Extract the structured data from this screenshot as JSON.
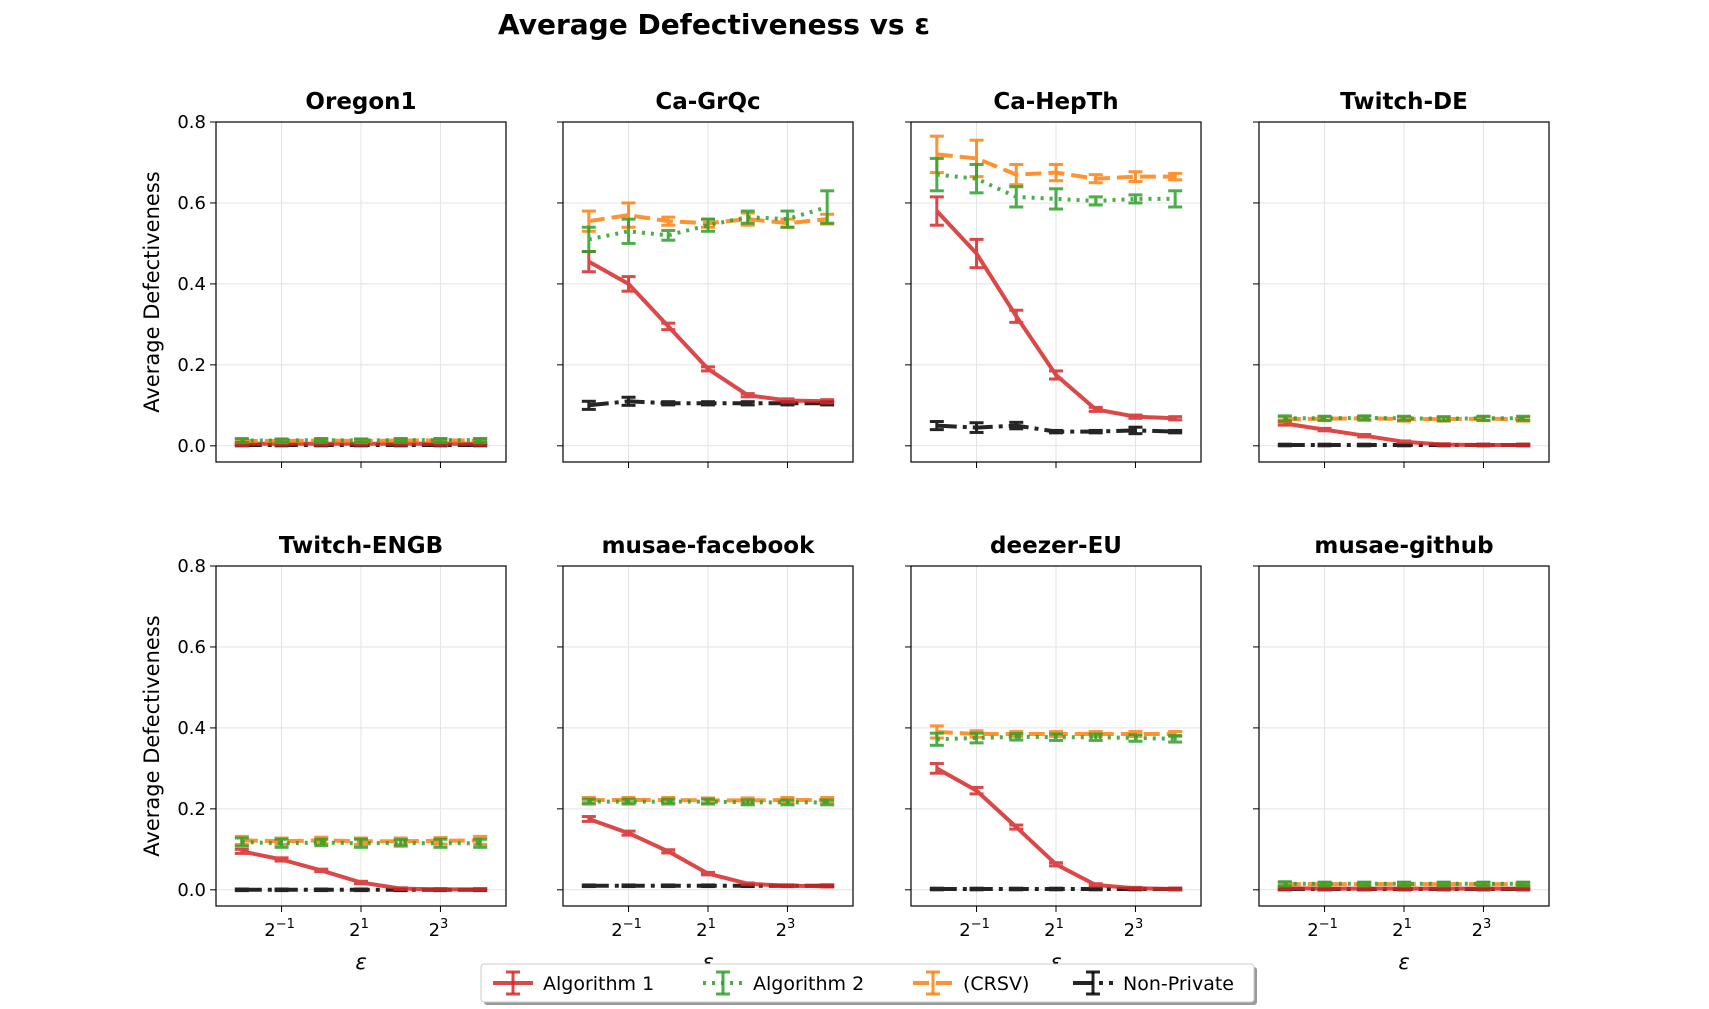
{
  "figure": {
    "title": "Average Defectiveness vs ε"
  },
  "chart_data": {
    "type": "line",
    "title": "Average Defectiveness vs ε",
    "xlabel": "ε",
    "ylabel": "Average Defectiveness",
    "x": [
      0.25,
      0.5,
      1,
      2,
      4,
      8,
      16
    ],
    "xscale": "log2",
    "xlim_log2": [
      -2.65,
      4.65
    ],
    "ylim": [
      -0.04,
      0.8
    ],
    "xticks": [
      {
        "exp": "-1",
        "value": 0.5
      },
      {
        "exp": "1",
        "value": 2
      },
      {
        "exp": "3",
        "value": 8
      }
    ],
    "yticks": [
      "0.0",
      "0.2",
      "0.4",
      "0.6",
      "0.8"
    ],
    "yticks_values": [
      0,
      0.2,
      0.4,
      0.6,
      0.8
    ],
    "grid": true,
    "legend": {
      "position": "bottom-center",
      "entries": [
        {
          "name": "Algorithm 1",
          "color": "#d62728",
          "style": "solid"
        },
        {
          "name": "Algorithm 2",
          "color": "#2ca02c",
          "style": "dotted"
        },
        {
          "name": "(CRSV)",
          "color": "#ff7f0e",
          "style": "dashed"
        },
        {
          "name": "Non-Private",
          "color": "#000000",
          "style": "dashdot"
        }
      ]
    },
    "panels": [
      {
        "title": "Oregon1",
        "series": [
          {
            "name": "Algorithm 1",
            "values": [
              0.005,
              0.005,
              0.005,
              0.005,
              0.005,
              0.005,
              0.005
            ],
            "errors": [
              0.004,
              0.003,
              0.003,
              0.003,
              0.003,
              0.003,
              0.003
            ]
          },
          {
            "name": "Algorithm 2",
            "values": [
              0.013,
              0.013,
              0.014,
              0.013,
              0.014,
              0.014,
              0.014
            ],
            "errors": [
              0.005,
              0.004,
              0.004,
              0.004,
              0.004,
              0.004,
              0.004
            ]
          },
          {
            "name": "(CRSV)",
            "values": [
              0.012,
              0.012,
              0.013,
              0.012,
              0.013,
              0.013,
              0.013
            ],
            "errors": [
              0.004,
              0.004,
              0.004,
              0.004,
              0.004,
              0.004,
              0.004
            ]
          },
          {
            "name": "Non-Private",
            "values": [
              0.002,
              0.002,
              0.002,
              0.002,
              0.002,
              0.002,
              0.002
            ],
            "errors": [
              0.002,
              0.002,
              0.002,
              0.002,
              0.002,
              0.002,
              0.002
            ]
          }
        ]
      },
      {
        "title": "Ca-GrQc",
        "series": [
          {
            "name": "Algorithm 1",
            "values": [
              0.455,
              0.4,
              0.295,
              0.19,
              0.125,
              0.112,
              0.11
            ],
            "errors": [
              0.025,
              0.018,
              0.008,
              0.005,
              0.004,
              0.004,
              0.004
            ]
          },
          {
            "name": "Algorithm 2",
            "values": [
              0.51,
              0.53,
              0.52,
              0.545,
              0.565,
              0.56,
              0.59
            ],
            "errors": [
              0.03,
              0.03,
              0.012,
              0.015,
              0.015,
              0.02,
              0.04
            ]
          },
          {
            "name": "(CRSV)",
            "values": [
              0.555,
              0.57,
              0.555,
              0.55,
              0.56,
              0.55,
              0.56
            ],
            "errors": [
              0.025,
              0.03,
              0.01,
              0.01,
              0.015,
              0.01,
              0.012
            ]
          },
          {
            "name": "Non-Private",
            "values": [
              0.1,
              0.11,
              0.105,
              0.105,
              0.105,
              0.105,
              0.105
            ],
            "errors": [
              0.01,
              0.01,
              0.004,
              0.004,
              0.004,
              0.004,
              0.004
            ]
          }
        ]
      },
      {
        "title": "Ca-HepTh",
        "series": [
          {
            "name": "Algorithm 1",
            "values": [
              0.58,
              0.475,
              0.32,
              0.175,
              0.09,
              0.072,
              0.068
            ],
            "errors": [
              0.035,
              0.035,
              0.015,
              0.01,
              0.005,
              0.004,
              0.004
            ]
          },
          {
            "name": "Algorithm 2",
            "values": [
              0.67,
              0.66,
              0.615,
              0.61,
              0.605,
              0.61,
              0.61
            ],
            "errors": [
              0.04,
              0.035,
              0.025,
              0.025,
              0.01,
              0.01,
              0.02
            ]
          },
          {
            "name": "(CRSV)",
            "values": [
              0.72,
              0.71,
              0.67,
              0.675,
              0.66,
              0.665,
              0.665
            ],
            "errors": [
              0.045,
              0.045,
              0.025,
              0.02,
              0.01,
              0.012,
              0.008
            ]
          },
          {
            "name": "Non-Private",
            "values": [
              0.05,
              0.045,
              0.05,
              0.035,
              0.035,
              0.038,
              0.035
            ],
            "errors": [
              0.01,
              0.012,
              0.008,
              0.003,
              0.003,
              0.008,
              0.003
            ]
          }
        ]
      },
      {
        "title": "Twitch-DE",
        "series": [
          {
            "name": "Algorithm 1",
            "values": [
              0.055,
              0.04,
              0.025,
              0.01,
              0.003,
              0.002,
              0.002
            ],
            "errors": [
              0.004,
              0.003,
              0.003,
              0.002,
              0.002,
              0.002,
              0.002
            ]
          },
          {
            "name": "Algorithm 2",
            "values": [
              0.068,
              0.068,
              0.069,
              0.068,
              0.067,
              0.068,
              0.068
            ],
            "errors": [
              0.006,
              0.005,
              0.005,
              0.005,
              0.005,
              0.005,
              0.005
            ]
          },
          {
            "name": "(CRSV)",
            "values": [
              0.066,
              0.067,
              0.068,
              0.066,
              0.066,
              0.067,
              0.066
            ],
            "errors": [
              0.005,
              0.005,
              0.005,
              0.005,
              0.005,
              0.005,
              0.005
            ]
          },
          {
            "name": "Non-Private",
            "values": [
              0.002,
              0.002,
              0.002,
              0.002,
              0.002,
              0.002,
              0.002
            ],
            "errors": [
              0.002,
              0.002,
              0.002,
              0.002,
              0.002,
              0.002,
              0.002
            ]
          }
        ]
      },
      {
        "title": "Twitch-ENGB",
        "series": [
          {
            "name": "Algorithm 1",
            "values": [
              0.095,
              0.075,
              0.048,
              0.018,
              0.003,
              0.001,
              0.001
            ],
            "errors": [
              0.005,
              0.004,
              0.003,
              0.003,
              0.002,
              0.002,
              0.002
            ]
          },
          {
            "name": "Algorithm 2",
            "values": [
              0.118,
              0.115,
              0.117,
              0.115,
              0.116,
              0.115,
              0.115
            ],
            "errors": [
              0.01,
              0.01,
              0.008,
              0.01,
              0.008,
              0.01,
              0.01
            ]
          },
          {
            "name": "(CRSV)",
            "values": [
              0.122,
              0.12,
              0.122,
              0.12,
              0.12,
              0.121,
              0.122
            ],
            "errors": [
              0.01,
              0.008,
              0.008,
              0.008,
              0.008,
              0.008,
              0.01
            ]
          },
          {
            "name": "Non-Private",
            "values": [
              0.0,
              0.0,
              0.0,
              0.0,
              0.0,
              0.0,
              0.0
            ],
            "errors": [
              0.002,
              0.002,
              0.002,
              0.002,
              0.002,
              0.002,
              0.002
            ]
          }
        ]
      },
      {
        "title": "musae-facebook",
        "series": [
          {
            "name": "Algorithm 1",
            "values": [
              0.175,
              0.14,
              0.095,
              0.04,
              0.015,
              0.01,
              0.009
            ],
            "errors": [
              0.006,
              0.005,
              0.004,
              0.003,
              0.002,
              0.002,
              0.002
            ]
          },
          {
            "name": "Algorithm 2",
            "values": [
              0.218,
              0.218,
              0.218,
              0.218,
              0.216,
              0.216,
              0.216
            ],
            "errors": [
              0.006,
              0.006,
              0.006,
              0.006,
              0.006,
              0.006,
              0.006
            ]
          },
          {
            "name": "(CRSV)",
            "values": [
              0.222,
              0.222,
              0.222,
              0.221,
              0.221,
              0.222,
              0.222
            ],
            "errors": [
              0.006,
              0.006,
              0.006,
              0.006,
              0.006,
              0.006,
              0.006
            ]
          },
          {
            "name": "Non-Private",
            "values": [
              0.01,
              0.01,
              0.01,
              0.01,
              0.01,
              0.01,
              0.01
            ],
            "errors": [
              0.002,
              0.002,
              0.002,
              0.002,
              0.002,
              0.002,
              0.002
            ]
          }
        ]
      },
      {
        "title": "deezer-EU",
        "series": [
          {
            "name": "Algorithm 1",
            "values": [
              0.3,
              0.245,
              0.155,
              0.063,
              0.012,
              0.004,
              0.002
            ],
            "errors": [
              0.012,
              0.008,
              0.005,
              0.004,
              0.003,
              0.002,
              0.002
            ]
          },
          {
            "name": "Algorithm 2",
            "values": [
              0.372,
              0.375,
              0.378,
              0.377,
              0.377,
              0.375,
              0.373
            ],
            "errors": [
              0.015,
              0.012,
              0.008,
              0.008,
              0.008,
              0.008,
              0.008
            ]
          },
          {
            "name": "(CRSV)",
            "values": [
              0.39,
              0.385,
              0.385,
              0.385,
              0.385,
              0.385,
              0.385
            ],
            "errors": [
              0.015,
              0.008,
              0.006,
              0.006,
              0.006,
              0.006,
              0.006
            ]
          },
          {
            "name": "Non-Private",
            "values": [
              0.002,
              0.002,
              0.002,
              0.002,
              0.002,
              0.002,
              0.002
            ],
            "errors": [
              0.002,
              0.002,
              0.002,
              0.002,
              0.002,
              0.002,
              0.002
            ]
          }
        ]
      },
      {
        "title": "musae-github",
        "series": [
          {
            "name": "Algorithm 1",
            "values": [
              0.004,
              0.003,
              0.003,
              0.003,
              0.003,
              0.003,
              0.003
            ],
            "errors": [
              0.003,
              0.003,
              0.003,
              0.003,
              0.003,
              0.003,
              0.003
            ]
          },
          {
            "name": "Algorithm 2",
            "values": [
              0.015,
              0.015,
              0.015,
              0.015,
              0.015,
              0.015,
              0.015
            ],
            "errors": [
              0.005,
              0.004,
              0.004,
              0.004,
              0.004,
              0.004,
              0.004
            ]
          },
          {
            "name": "(CRSV)",
            "values": [
              0.014,
              0.014,
              0.014,
              0.014,
              0.014,
              0.014,
              0.014
            ],
            "errors": [
              0.004,
              0.004,
              0.004,
              0.004,
              0.004,
              0.004,
              0.004
            ]
          },
          {
            "name": "Non-Private",
            "values": [
              0.002,
              0.002,
              0.002,
              0.002,
              0.002,
              0.002,
              0.002
            ],
            "errors": [
              0.002,
              0.002,
              0.002,
              0.002,
              0.002,
              0.002,
              0.002
            ]
          }
        ]
      }
    ]
  }
}
